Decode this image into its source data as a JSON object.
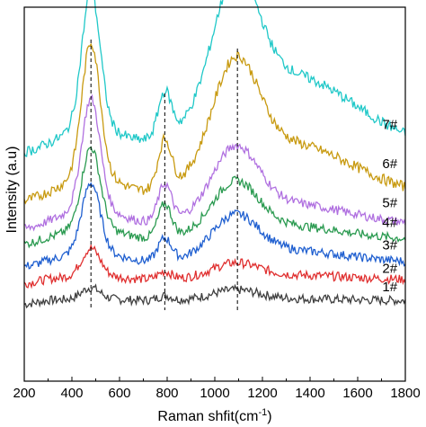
{
  "chart_data": {
    "type": "line",
    "xlabel": "Raman shfit(cm",
    "xlabel_superscript": "-1",
    "xlabel_suffix": ")",
    "ylabel": "Intensity (a.u)",
    "xlim": [
      200,
      1800
    ],
    "ylim": [
      0,
      1
    ],
    "x_ticks": [
      200,
      400,
      600,
      800,
      1000,
      1200,
      1400,
      1600,
      1800
    ],
    "y_ticks_labeled": false,
    "grid": false,
    "legend": "inline-labels-right",
    "reference_lines_x": [
      480,
      790,
      1095
    ],
    "series": [
      {
        "name": "1#",
        "color": "#404040",
        "baseline": 0.215,
        "peak1": 0.035,
        "peak2": 0.012,
        "peak3": 0.03,
        "tail": 0.0,
        "noise": 0.012,
        "label_x": 1735,
        "label_y": 0.24
      },
      {
        "name": "2#",
        "color": "#e03030",
        "baseline": 0.27,
        "peak1": 0.085,
        "peak2": 0.02,
        "peak3": 0.045,
        "tail": 0.005,
        "noise": 0.012,
        "label_x": 1735,
        "label_y": 0.29
      },
      {
        "name": "3#",
        "color": "#1f5fd0",
        "baseline": 0.315,
        "peak1": 0.215,
        "peak2": 0.06,
        "peak3": 0.13,
        "tail": 0.01,
        "noise": 0.012,
        "label_x": 1735,
        "label_y": 0.352
      },
      {
        "name": "4#",
        "color": "#2a9a50",
        "baseline": 0.375,
        "peak1": 0.25,
        "peak2": 0.09,
        "peak3": 0.16,
        "tail": 0.01,
        "noise": 0.012,
        "label_x": 1735,
        "label_y": 0.412
      },
      {
        "name": "5#",
        "color": "#b070e0",
        "baseline": 0.415,
        "peak1": 0.34,
        "peak2": 0.1,
        "peak3": 0.21,
        "tail": 0.02,
        "noise": 0.012,
        "label_x": 1735,
        "label_y": 0.465
      },
      {
        "name": "6#",
        "color": "#c89a10",
        "baseline": 0.49,
        "peak1": 0.415,
        "peak2": 0.13,
        "peak3": 0.34,
        "tail": 0.08,
        "noise": 0.014,
        "label_x": 1735,
        "label_y": 0.57
      },
      {
        "name": "7#",
        "color": "#20c8c8",
        "baseline": 0.62,
        "peak1": 0.42,
        "peak2": 0.12,
        "peak3": 0.41,
        "tail": 0.12,
        "noise": 0.014,
        "label_x": 1735,
        "label_y": 0.674
      }
    ]
  }
}
